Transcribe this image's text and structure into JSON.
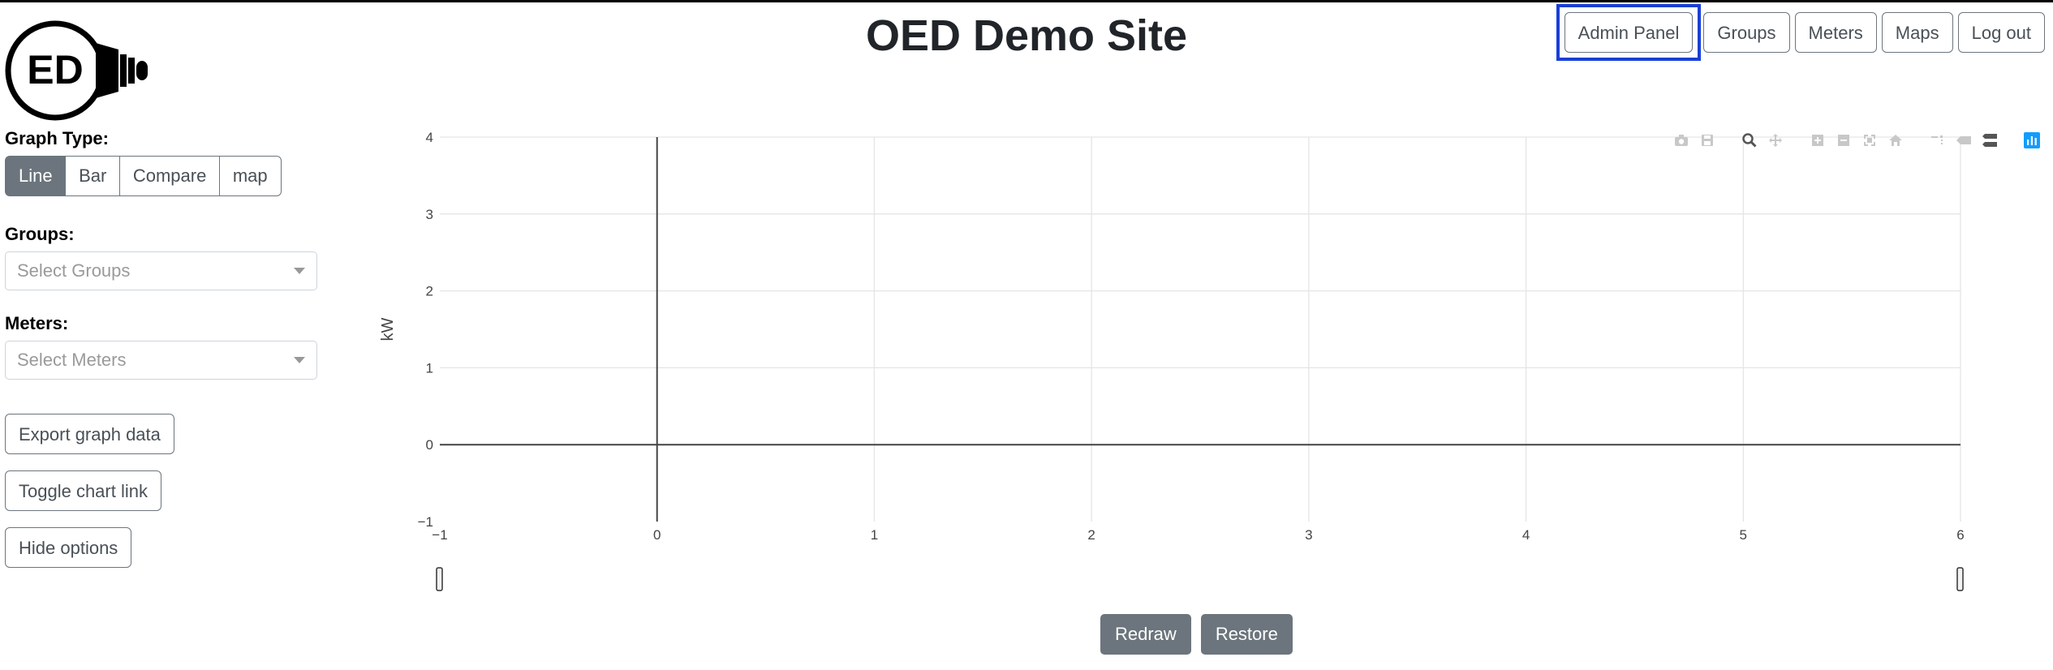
{
  "header": {
    "title": "OED Demo Site",
    "logo_text": "ED",
    "nav": [
      {
        "label": "Admin Panel",
        "highlighted": true
      },
      {
        "label": "Groups"
      },
      {
        "label": "Meters"
      },
      {
        "label": "Maps"
      },
      {
        "label": "Log out"
      }
    ]
  },
  "sidebar": {
    "graph_type_label": "Graph Type:",
    "graph_types": [
      {
        "label": "Line",
        "active": true
      },
      {
        "label": "Bar"
      },
      {
        "label": "Compare"
      },
      {
        "label": "map"
      }
    ],
    "groups_label": "Groups:",
    "groups_placeholder": "Select Groups",
    "meters_label": "Meters:",
    "meters_placeholder": "Select Meters",
    "buttons": {
      "export": "Export graph data",
      "toggle_link": "Toggle chart link",
      "hide_options": "Hide options"
    }
  },
  "chart_data": {
    "type": "line",
    "series": [],
    "xlim": [
      -1,
      6
    ],
    "ylim": [
      -1,
      4
    ],
    "x_ticks": [
      "−1",
      "0",
      "1",
      "2",
      "3",
      "4",
      "5",
      "6"
    ],
    "y_ticks": [
      "−1",
      "0",
      "1",
      "2",
      "3",
      "4"
    ],
    "ylabel": "kW",
    "xlabel": "",
    "grid": true,
    "range_slider": true
  },
  "modebar": [
    "camera-icon",
    "save-icon",
    "zoom-icon",
    "pan-icon",
    "zoom-in-icon",
    "zoom-out-icon",
    "autoscale-icon",
    "home-icon",
    "spike-lines-icon",
    "hover-closest-icon",
    "hover-compare-icon",
    "plotly-logo-icon"
  ],
  "actions": {
    "redraw": "Redraw",
    "restore": "Restore"
  },
  "colors": {
    "accent": "#6c757d",
    "highlight": "#1a3fd6",
    "plotly_blue": "#119dff"
  }
}
